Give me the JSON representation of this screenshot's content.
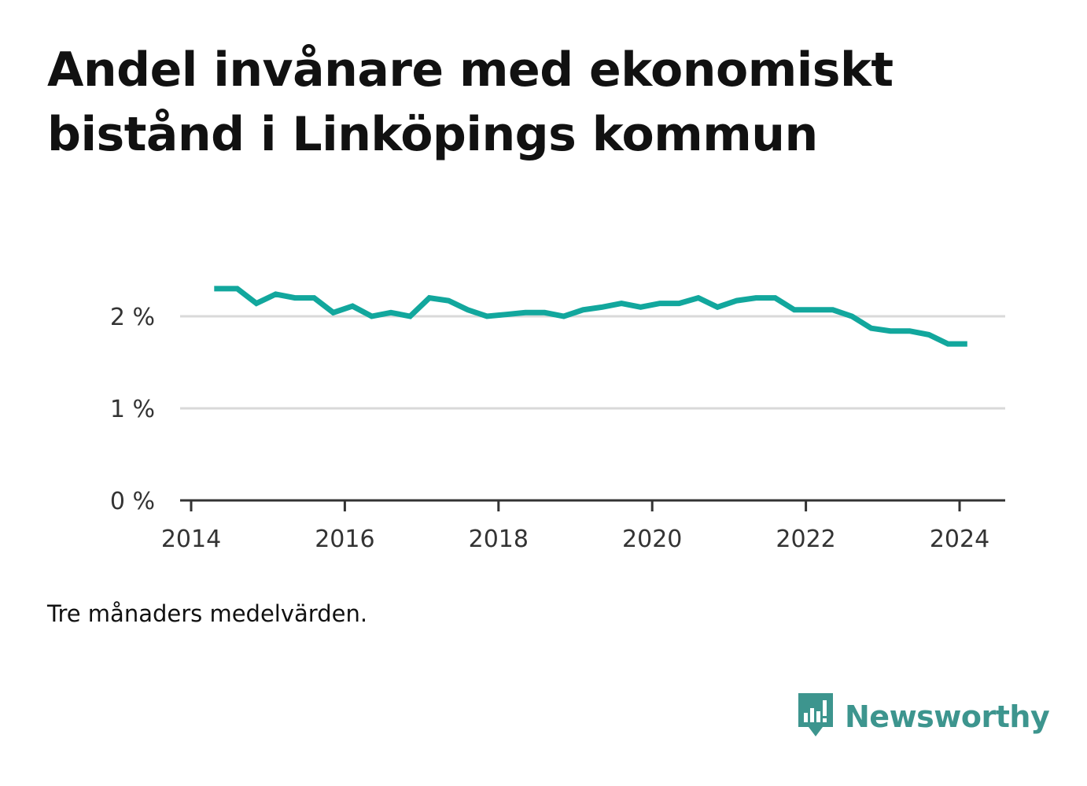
{
  "title": "Andel invånare med ekonomiskt bistånd i Linköpings kommun",
  "note": "Tre månaders medelvärden.",
  "brand": {
    "name": "Newsworthy",
    "icon": "newsworthy-logo-icon",
    "color": "#3d958e"
  },
  "colors": {
    "line": "#12a79d",
    "grid": "#d9d9d9",
    "axis": "#333333"
  },
  "chart_data": {
    "type": "line",
    "title": "Andel invånare med ekonomiskt bistånd i Linköpings kommun",
    "xlabel": "",
    "ylabel": "",
    "xlim": [
      2014.0,
      2024.6
    ],
    "ylim": [
      0,
      2.5
    ],
    "x_ticks": [
      2014,
      2016,
      2018,
      2020,
      2022,
      2024
    ],
    "x_tick_labels": [
      "2014",
      "2016",
      "2018",
      "2020",
      "2022",
      "2024"
    ],
    "y_ticks": [
      0,
      1,
      2
    ],
    "y_tick_labels": [
      "0 %",
      "1 %",
      "2 %"
    ],
    "grid": true,
    "series": [
      {
        "name": "Andel invånare med ekonomiskt bistånd",
        "unit": "%",
        "x": [
          2014.3,
          2014.6,
          2014.85,
          2015.1,
          2015.35,
          2015.6,
          2015.85,
          2016.1,
          2016.35,
          2016.6,
          2016.85,
          2017.1,
          2017.35,
          2017.6,
          2017.85,
          2018.1,
          2018.35,
          2018.6,
          2018.85,
          2019.1,
          2019.35,
          2019.6,
          2019.85,
          2020.1,
          2020.35,
          2020.6,
          2020.85,
          2021.1,
          2021.35,
          2021.6,
          2021.85,
          2022.1,
          2022.35,
          2022.6,
          2022.85,
          2023.1,
          2023.35,
          2023.6,
          2023.85,
          2024.1
        ],
        "values": [
          2.3,
          2.3,
          2.14,
          2.24,
          2.2,
          2.2,
          2.04,
          2.11,
          2.0,
          2.04,
          2.0,
          2.2,
          2.17,
          2.07,
          2.0,
          2.02,
          2.04,
          2.04,
          2.0,
          2.07,
          2.1,
          2.14,
          2.1,
          2.14,
          2.14,
          2.2,
          2.1,
          2.17,
          2.2,
          2.2,
          2.07,
          2.07,
          2.07,
          2.0,
          1.87,
          1.84,
          1.84,
          1.8,
          1.7,
          1.7
        ]
      }
    ]
  }
}
